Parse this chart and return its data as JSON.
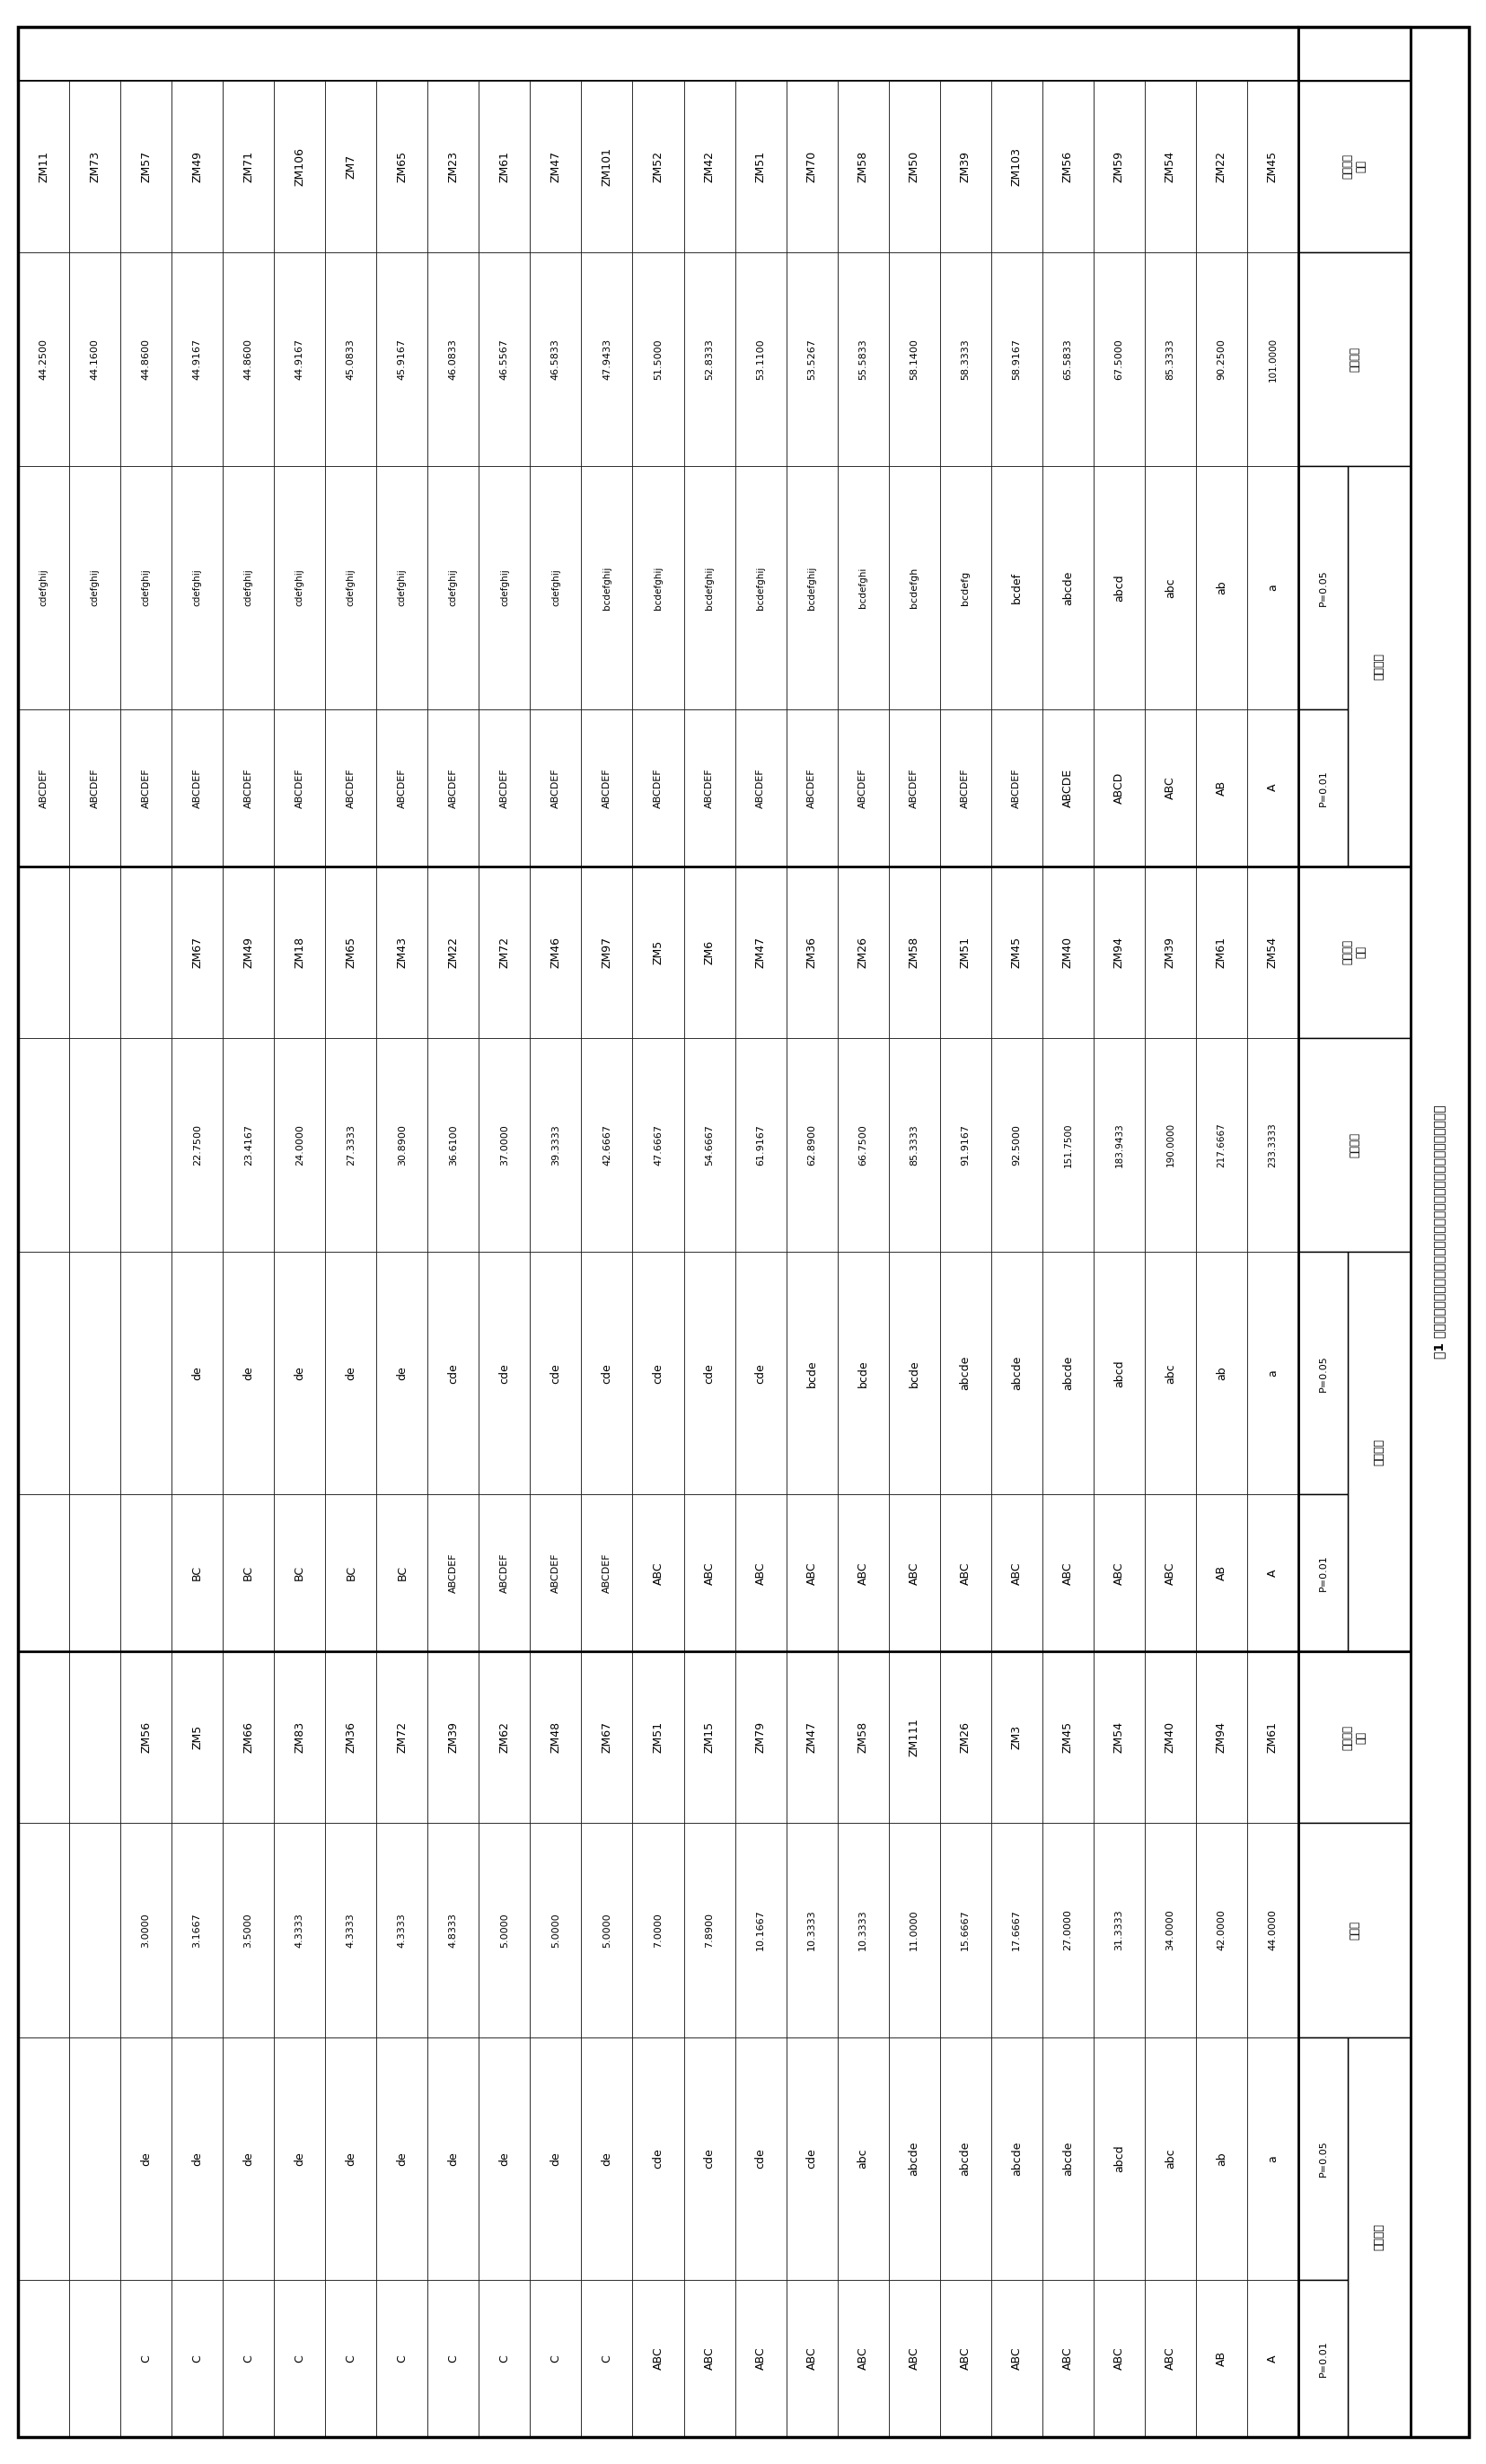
{
  "title": "表1 不同棉花品种（系）上烟粉虱成虫、若虫和蛹数量差异显著性分析结果",
  "adult_data": [
    [
      "ZM45",
      "101.0000",
      "a",
      "A"
    ],
    [
      "ZM22",
      "90.2500",
      "ab",
      "AB"
    ],
    [
      "ZM54",
      "85.3333",
      "abc",
      "ABC"
    ],
    [
      "ZM59",
      "67.5000",
      "abcd",
      "ABCD"
    ],
    [
      "ZM56",
      "65.5833",
      "abcde",
      "ABCDE"
    ],
    [
      "ZM103",
      "58.9167",
      "bcdef",
      "ABCDEF"
    ],
    [
      "ZM39",
      "58.3333",
      "bcdefg",
      "ABCDEF"
    ],
    [
      "ZM50",
      "58.1400",
      "bcdefgh",
      "ABCDEF"
    ],
    [
      "ZM58",
      "55.5833",
      "bcdefghi",
      "ABCDEF"
    ],
    [
      "ZM70",
      "53.5267",
      "bcdefghij",
      "ABCDEF"
    ],
    [
      "ZM51",
      "53.1100",
      "bcdefghij",
      "ABCDEF"
    ],
    [
      "ZM42",
      "52.8333",
      "bcdefghij",
      "ABCDEF"
    ],
    [
      "ZM52",
      "51.5000",
      "bcdefghij",
      "ABCDEF"
    ],
    [
      "ZM101",
      "47.9433",
      "bcdefghij",
      "ABCDEF"
    ],
    [
      "ZM47",
      "46.5833",
      "cdefghij",
      "ABCDEF"
    ],
    [
      "ZM61",
      "46.5567",
      "cdefghij",
      "ABCDEF"
    ],
    [
      "ZM23",
      "46.0833",
      "cdefghij",
      "ABCDEF"
    ],
    [
      "ZM65",
      "45.9167",
      "cdefghij",
      "ABCDEF"
    ],
    [
      "ZM7",
      "45.0833",
      "cdefghij",
      "ABCDEF"
    ],
    [
      "ZM106",
      "44.9167",
      "cdefghij",
      "ABCDEF"
    ],
    [
      "ZM71",
      "44.8600",
      "cdefghij",
      "ABCDEF"
    ],
    [
      "ZM49",
      "44.9167",
      "cdefghij",
      "ABCDEF"
    ],
    [
      "ZM57",
      "44.8600",
      "cdefghij",
      "ABCDEF"
    ],
    [
      "ZM73",
      "44.1600",
      "cdefghij",
      "ABCDEF"
    ],
    [
      "ZM11",
      "44.2500",
      "cdefghij",
      "ABCDEF"
    ]
  ],
  "nymph_data": [
    [
      "ZM54",
      "233.3333",
      "a",
      "A"
    ],
    [
      "ZM61",
      "217.6667",
      "ab",
      "AB"
    ],
    [
      "ZM39",
      "190.0000",
      "abc",
      "ABC"
    ],
    [
      "ZM94",
      "183.9433",
      "abcd",
      "ABC"
    ],
    [
      "ZM40",
      "151.7500",
      "abcde",
      "ABC"
    ],
    [
      "ZM45",
      "92.5000",
      "abcde",
      "ABC"
    ],
    [
      "ZM51",
      "91.9167",
      "abcde",
      "ABC"
    ],
    [
      "ZM58",
      "85.3333",
      "bcde",
      "ABC"
    ],
    [
      "ZM26",
      "66.7500",
      "bcde",
      "ABC"
    ],
    [
      "ZM36",
      "62.8900",
      "bcde",
      "ABC"
    ],
    [
      "ZM47",
      "61.9167",
      "cde",
      "ABC"
    ],
    [
      "ZM6",
      "54.6667",
      "cde",
      "ABC"
    ],
    [
      "ZM5",
      "47.6667",
      "cde",
      "ABC"
    ],
    [
      "ZM97",
      "42.6667",
      "cde",
      "ABCDEF"
    ],
    [
      "ZM46",
      "39.3333",
      "cde",
      "ABCDEF"
    ],
    [
      "ZM72",
      "37.0000",
      "cde",
      "ABCDEF"
    ],
    [
      "ZM22",
      "36.6100",
      "cde",
      "ABCDEF"
    ],
    [
      "ZM43",
      "30.8900",
      "de",
      "BC"
    ],
    [
      "ZM65",
      "27.3333",
      "de",
      "BC"
    ],
    [
      "ZM18",
      "24.0000",
      "de",
      "BC"
    ],
    [
      "ZM49",
      "23.4167",
      "de",
      "BC"
    ],
    [
      "ZM67",
      "22.7500",
      "de",
      "BC"
    ]
  ],
  "pupa_data": [
    [
      "ZM61",
      "44.0000",
      "a",
      "A"
    ],
    [
      "ZM94",
      "42.0000",
      "ab",
      "AB"
    ],
    [
      "ZM40",
      "34.0000",
      "abc",
      "ABC"
    ],
    [
      "ZM54",
      "31.3333",
      "abcd",
      "ABC"
    ],
    [
      "ZM45",
      "27.0000",
      "abcde",
      "ABC"
    ],
    [
      "ZM3",
      "17.6667",
      "abcde",
      "ABC"
    ],
    [
      "ZM26",
      "15.6667",
      "abcde",
      "ABC"
    ],
    [
      "ZM111",
      "11.0000",
      "abcde",
      "ABC"
    ],
    [
      "ZM58",
      "10.3333",
      "abc",
      "ABC"
    ],
    [
      "ZM47",
      "10.3333",
      "cde",
      "ABC"
    ],
    [
      "ZM79",
      "10.1667",
      "cde",
      "ABC"
    ],
    [
      "ZM15",
      "7.8900",
      "cde",
      "ABC"
    ],
    [
      "ZM51",
      "7.0000",
      "cde",
      "ABC"
    ],
    [
      "ZM67",
      "5.0000",
      "de",
      "C"
    ],
    [
      "ZM48",
      "5.0000",
      "de",
      "C"
    ],
    [
      "ZM62",
      "5.0000",
      "de",
      "C"
    ],
    [
      "ZM39",
      "4.8333",
      "de",
      "C"
    ],
    [
      "ZM72",
      "4.3333",
      "de",
      "C"
    ],
    [
      "ZM36",
      "4.3333",
      "de",
      "C"
    ],
    [
      "ZM83",
      "4.3333",
      "de",
      "C"
    ],
    [
      "ZM66",
      "3.5000",
      "de",
      "C"
    ],
    [
      "ZM5",
      "3.1667",
      "de",
      "C"
    ],
    [
      "ZM56",
      "3.0000",
      "de",
      "C"
    ]
  ],
  "bg_color": "#ffffff",
  "text_color": "#000000",
  "border_color": "#000000"
}
